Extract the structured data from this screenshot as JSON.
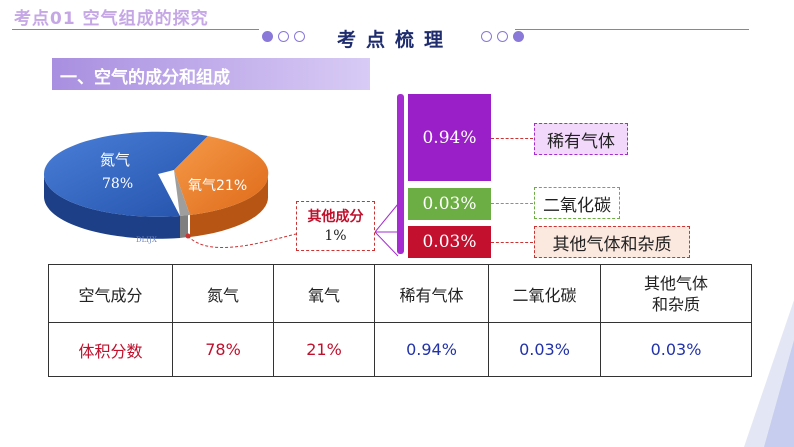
{
  "header": {
    "title": "考点01  空气组成的探究",
    "center_title": "考点梳理"
  },
  "section": {
    "title": "一、空气的成分和组成"
  },
  "pie": {
    "nitrogen_label": "氮气",
    "nitrogen_value": "78%",
    "oxygen_label": "氧气21%",
    "watermark": "DLIJX",
    "other_label": "其他成分",
    "other_value": "1%"
  },
  "breakdown": [
    {
      "value": "0.94%",
      "label": "稀有气体",
      "color": "#9b1fc9",
      "label_bg": "#f2d8fb"
    },
    {
      "value": "0.03%",
      "label": "二氧化碳",
      "color": "#6cae43",
      "label_bg": "#ffffff"
    },
    {
      "value": "0.03%",
      "label": "其他气体和杂质",
      "color": "#c3102f",
      "label_bg": "#fbe8df"
    }
  ],
  "table": {
    "header_cells": [
      "空气成分",
      "氮气",
      "氧气",
      "稀有气体",
      "二氧化碳",
      "其他气体和杂质"
    ],
    "value_cells": [
      "体积分数",
      "78%",
      "21%",
      "0.94%",
      "0.03%",
      "0.03%"
    ]
  },
  "colors": {
    "accent": "#8a79d9",
    "nitrogen": "#2f5fbe",
    "oxygen": "#ee7f2d",
    "title_blue": "#1f2d6e"
  }
}
